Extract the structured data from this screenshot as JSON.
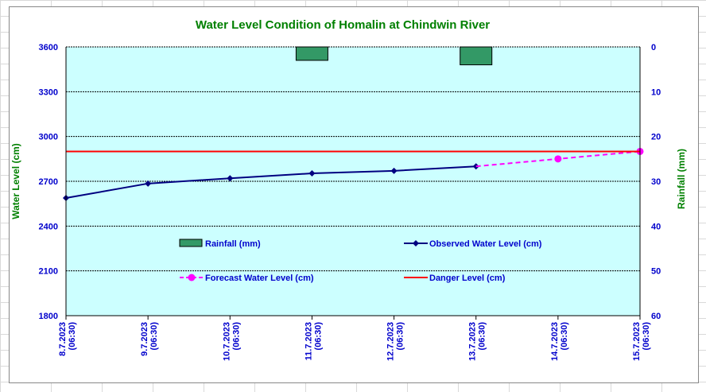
{
  "chart_data": {
    "type": "line",
    "title": "Water Level Condition  of Homalin  at Chindwin  River",
    "ylabel": "Water Level (cm)",
    "y2label": "Rainfall (mm)",
    "ylim": [
      1800,
      3600
    ],
    "yticks": [
      1800,
      2100,
      2400,
      2700,
      3000,
      3300,
      3600
    ],
    "y2lim": [
      60,
      0
    ],
    "y2ticks": [
      0,
      10,
      20,
      30,
      40,
      50,
      60
    ],
    "grid": true,
    "categories": [
      "8.7.2023 (06:30)",
      "9.7.2023 (06:30)",
      "10.7.2023 (06:30)",
      "11.7.2023 (06:30)",
      "12.7.2023 (06:30)",
      "13.7.2023 (06:30)",
      "14.7.2023 (06:30)",
      "15.7.2023 (06:30)"
    ],
    "series": [
      {
        "name": "Rainfall (mm)",
        "type": "bar",
        "axis": "right",
        "color": "#339966",
        "values": [
          0,
          0,
          0,
          3,
          0,
          4,
          null,
          null
        ]
      },
      {
        "name": "Observed Water Level (cm)",
        "type": "line",
        "color": "#000080",
        "values": [
          2588,
          2685,
          2720,
          2753,
          2770,
          2800,
          null,
          null
        ]
      },
      {
        "name": "Forecast Water Level (cm)",
        "type": "line",
        "dashed": true,
        "color": "#ff00ff",
        "values": [
          null,
          null,
          null,
          null,
          null,
          2800,
          2850,
          2900
        ]
      },
      {
        "name": "Danger Level (cm)",
        "type": "line",
        "color": "#ff0000",
        "values": [
          2900,
          2900,
          2900,
          2900,
          2900,
          2900,
          2900,
          2900
        ]
      }
    ],
    "legend": "inside-bottom",
    "colors": {
      "plot_bg": "#ccffff",
      "title": "#008000",
      "axis_text": "#0000cc",
      "axis_label": "#008000"
    }
  }
}
